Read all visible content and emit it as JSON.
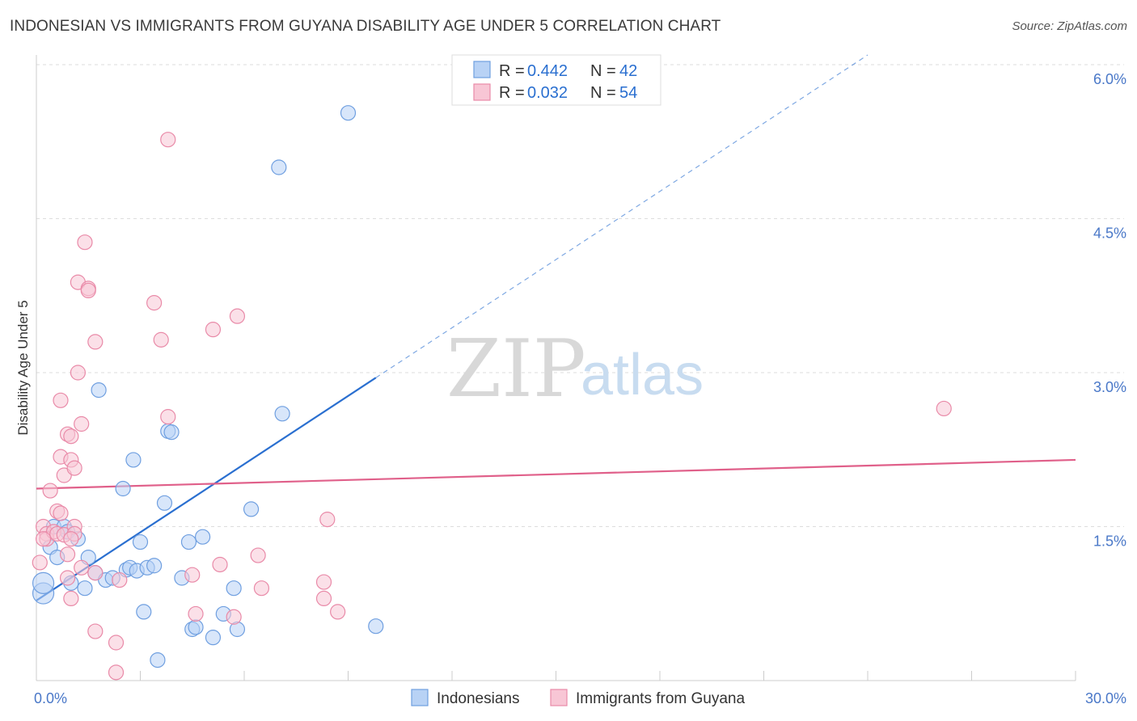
{
  "title": "INDONESIAN VS IMMIGRANTS FROM GUYANA DISABILITY AGE UNDER 5 CORRELATION CHART",
  "source": "Source: ZipAtlas.com",
  "watermark": {
    "zip": "ZIP",
    "atlas": "atlas"
  },
  "colors": {
    "blue": "#6f9fe0",
    "blue_fill": "#b8d2f5",
    "blue_line": "#2a6fd0",
    "pink": "#e98aa8",
    "pink_fill": "#f8c6d5",
    "pink_line": "#e0608a",
    "tick": "#4a78c8",
    "grid": "#dddddd"
  },
  "legend_top": [
    {
      "r_label": "R = ",
      "r_value": "0.442",
      "n_label": "N = ",
      "n_value": "42"
    },
    {
      "r_label": "R = ",
      "r_value": "0.032",
      "n_label": "N = ",
      "n_value": "54"
    }
  ],
  "chart_data": {
    "type": "scatter",
    "xlabel": "",
    "ylabel": "Disability Age Under 5",
    "xlim": [
      0,
      30
    ],
    "ylim": [
      0,
      6.0
    ],
    "x_ticks": [
      "0.0%",
      "30.0%"
    ],
    "y_ticks": [
      {
        "value": 1.5,
        "label": "1.5%"
      },
      {
        "value": 3.0,
        "label": "3.0%"
      },
      {
        "value": 4.5,
        "label": "4.5%"
      },
      {
        "value": 6.0,
        "label": "6.0%"
      }
    ],
    "grid": true,
    "legend_position": "top-center",
    "series": [
      {
        "name": "Indonesians",
        "color": "#6f9fe0",
        "trend": {
          "x0": 0.0,
          "y0": 0.78,
          "x1": 9.8,
          "y1": 2.95,
          "dashed_to_x": 24.0
        },
        "points": [
          [
            0.2,
            0.85
          ],
          [
            0.2,
            0.95
          ],
          [
            0.4,
            1.3
          ],
          [
            0.5,
            1.5
          ],
          [
            0.6,
            1.2
          ],
          [
            0.8,
            1.5
          ],
          [
            0.9,
            1.45
          ],
          [
            1.0,
            0.95
          ],
          [
            1.2,
            1.38
          ],
          [
            1.4,
            0.9
          ],
          [
            1.5,
            1.2
          ],
          [
            1.7,
            1.05
          ],
          [
            1.8,
            2.83
          ],
          [
            2.0,
            0.98
          ],
          [
            2.2,
            1.0
          ],
          [
            2.5,
            1.87
          ],
          [
            2.6,
            1.08
          ],
          [
            2.8,
            2.15
          ],
          [
            2.7,
            1.1
          ],
          [
            2.9,
            1.07
          ],
          [
            3.0,
            1.35
          ],
          [
            3.1,
            0.67
          ],
          [
            3.2,
            1.1
          ],
          [
            3.4,
            1.12
          ],
          [
            3.5,
            0.2
          ],
          [
            3.7,
            1.73
          ],
          [
            3.8,
            2.43
          ],
          [
            3.9,
            2.42
          ],
          [
            4.2,
            1.0
          ],
          [
            4.4,
            1.35
          ],
          [
            4.5,
            0.5
          ],
          [
            4.6,
            0.52
          ],
          [
            4.8,
            1.4
          ],
          [
            5.1,
            0.42
          ],
          [
            5.4,
            0.65
          ],
          [
            5.7,
            0.9
          ],
          [
            5.8,
            0.5
          ],
          [
            6.2,
            1.67
          ],
          [
            7.0,
            5.0
          ],
          [
            7.1,
            2.6
          ],
          [
            9.0,
            5.53
          ],
          [
            9.8,
            0.53
          ]
        ]
      },
      {
        "name": "Immigrants from Guyana",
        "color": "#e98aa8",
        "trend": {
          "x0": 0.0,
          "y0": 1.87,
          "x1": 30.0,
          "y1": 2.15
        },
        "points": [
          [
            0.1,
            1.15
          ],
          [
            0.2,
            1.5
          ],
          [
            0.3,
            1.43
          ],
          [
            0.3,
            1.38
          ],
          [
            0.4,
            1.85
          ],
          [
            0.5,
            1.45
          ],
          [
            0.6,
            1.65
          ],
          [
            0.6,
            1.43
          ],
          [
            0.7,
            1.63
          ],
          [
            0.7,
            2.18
          ],
          [
            0.7,
            2.73
          ],
          [
            0.8,
            2.0
          ],
          [
            0.8,
            1.42
          ],
          [
            0.9,
            2.4
          ],
          [
            0.9,
            1.23
          ],
          [
            0.9,
            1.0
          ],
          [
            1.0,
            2.38
          ],
          [
            1.0,
            2.15
          ],
          [
            1.0,
            0.8
          ],
          [
            1.1,
            1.5
          ],
          [
            1.1,
            1.43
          ],
          [
            1.0,
            1.38
          ],
          [
            1.1,
            2.07
          ],
          [
            1.2,
            3.88
          ],
          [
            1.2,
            3.0
          ],
          [
            1.3,
            2.5
          ],
          [
            1.3,
            1.1
          ],
          [
            1.4,
            4.27
          ],
          [
            1.5,
            3.82
          ],
          [
            1.5,
            3.8
          ],
          [
            1.7,
            3.3
          ],
          [
            1.7,
            1.05
          ],
          [
            1.7,
            0.48
          ],
          [
            2.3,
            0.37
          ],
          [
            2.4,
            0.98
          ],
          [
            2.3,
            0.08
          ],
          [
            3.4,
            3.68
          ],
          [
            3.6,
            3.32
          ],
          [
            3.8,
            5.27
          ],
          [
            3.8,
            2.57
          ],
          [
            4.5,
            1.03
          ],
          [
            4.6,
            0.65
          ],
          [
            5.1,
            3.42
          ],
          [
            5.3,
            1.13
          ],
          [
            5.7,
            0.62
          ],
          [
            5.8,
            3.55
          ],
          [
            6.4,
            1.22
          ],
          [
            6.5,
            0.9
          ],
          [
            8.3,
            0.96
          ],
          [
            8.3,
            0.8
          ],
          [
            8.4,
            1.57
          ],
          [
            8.7,
            0.67
          ],
          [
            26.2,
            2.65
          ],
          [
            0.2,
            1.38
          ]
        ]
      }
    ]
  },
  "legend_bottom": [
    {
      "label": "Indonesians"
    },
    {
      "label": "Immigrants from Guyana"
    }
  ]
}
